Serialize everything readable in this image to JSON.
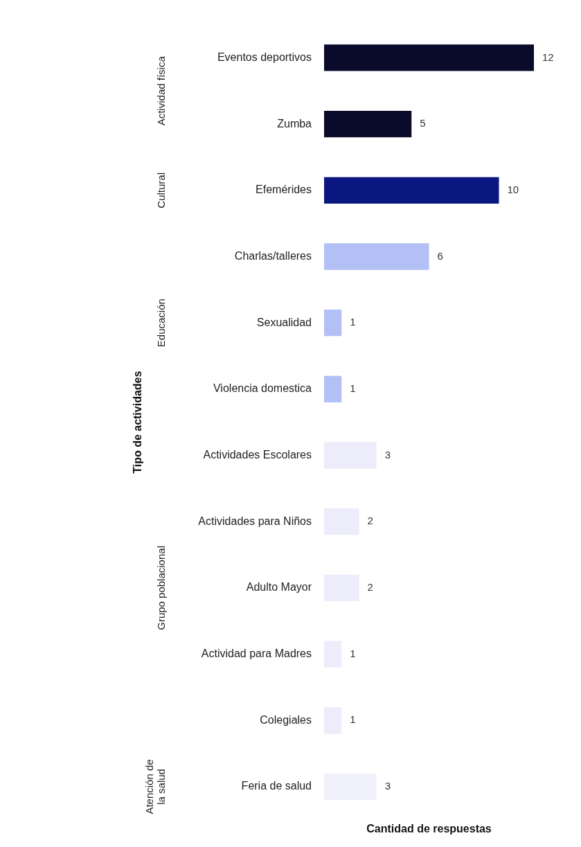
{
  "chart_data": {
    "type": "bar",
    "orientation": "horizontal",
    "xlabel": "Cantidad de respuestas",
    "ylabel": "Tipo de actividades",
    "categories": [
      "Eventos deportivos",
      "Zumba",
      "Efemérides",
      "Charlas/talleres",
      "Sexualidad",
      "Violencia domestica",
      "Actividades Escolares",
      "Actividades para Niños",
      "Adulto Mayor",
      "Actividad para Madres",
      "Colegiales",
      "Feria de salud"
    ],
    "values": [
      12,
      5,
      10,
      6,
      1,
      1,
      3,
      2,
      2,
      1,
      1,
      3
    ],
    "colors": [
      "#0a0a2a",
      "#0a0a2a",
      "#0b1780",
      "#b3c0f5",
      "#b3c0f5",
      "#b3c0f5",
      "#ececfa",
      "#ececfa",
      "#ececfa",
      "#ececfa",
      "#ececfa",
      "#f1f1fb"
    ],
    "data_labels": true,
    "tick_labels": "y",
    "grid": false,
    "legend": false,
    "relative": false,
    "annotations": [
      "Actividad física",
      "Cultural",
      "Educación",
      "Grupo poblacional",
      "Atención de la salud"
    ]
  }
}
